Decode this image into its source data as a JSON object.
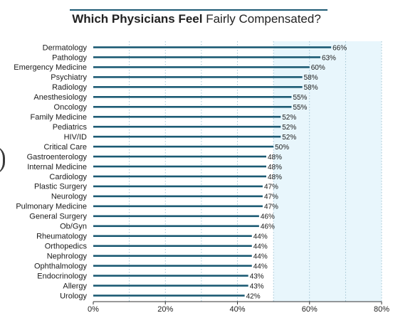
{
  "title": {
    "bold": "Which Physicians Feel",
    "light": "Fairly Compensated?"
  },
  "colors": {
    "bar": "#1b5a73",
    "shade": "#e8f6fc",
    "grid": "#8fb7c9",
    "title_rule": "#1e5a74"
  },
  "chart_data": {
    "type": "bar",
    "orientation": "horizontal",
    "title": "Which Physicians Feel Fairly Compensated?",
    "categories": [
      "Dermatology",
      "Pathology",
      "Emergency Medicine",
      "Psychiatry",
      "Radiology",
      "Anesthesiology",
      "Oncology",
      "Family Medicine",
      "Pediatrics",
      "HIV/ID",
      "Critical Care",
      "Gastroenterology",
      "Internal Medicine",
      "Cardiology",
      "Plastic Surgery",
      "Neurology",
      "Pulmonary Medicine",
      "General Surgery",
      "Ob/Gyn",
      "Rheumatology",
      "Orthopedics",
      "Nephrology",
      "Ophthalmology",
      "Endocrinology",
      "Allergy",
      "Urology"
    ],
    "values": [
      66,
      63,
      60,
      58,
      58,
      55,
      55,
      52,
      52,
      52,
      50,
      48,
      48,
      48,
      47,
      47,
      47,
      46,
      46,
      44,
      44,
      44,
      44,
      43,
      43,
      42
    ],
    "value_labels": [
      "66%",
      "63%",
      "60%",
      "58%",
      "58%",
      "55%",
      "55%",
      "52%",
      "52%",
      "52%",
      "50%",
      "48%",
      "48%",
      "48%",
      "47%",
      "47%",
      "47%",
      "46%",
      "46%",
      "44%",
      "44%",
      "44%",
      "44%",
      "43%",
      "43%",
      "42%"
    ],
    "xlim": [
      0,
      80
    ],
    "xticks": [
      0,
      20,
      40,
      60,
      80
    ],
    "xtick_labels": [
      "0%",
      "20%",
      "40%",
      "60%",
      "80%"
    ],
    "shaded_range": [
      50,
      80
    ],
    "grid": true
  }
}
